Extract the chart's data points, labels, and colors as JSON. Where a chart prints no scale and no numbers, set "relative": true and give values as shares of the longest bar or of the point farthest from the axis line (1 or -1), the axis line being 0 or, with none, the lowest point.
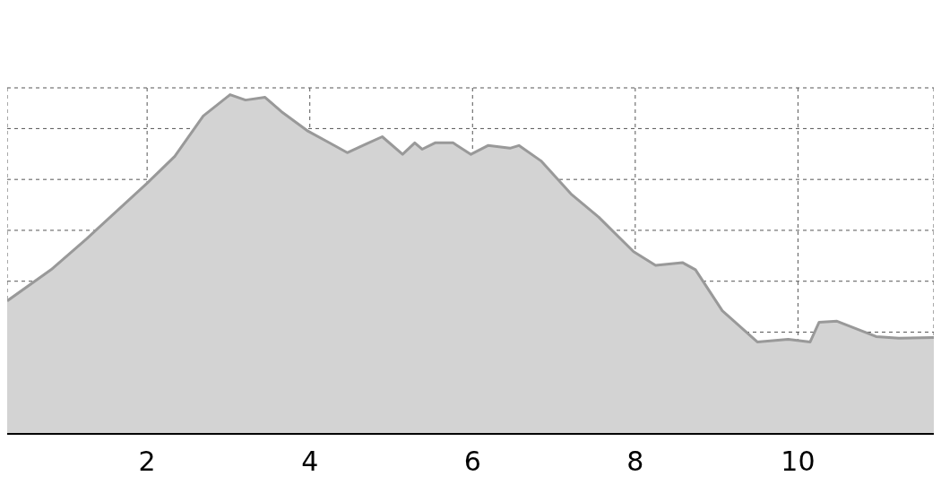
{
  "chart_data": {
    "type": "area",
    "relative": true,
    "x": [
      0.28,
      0.82,
      1.26,
      2.0,
      2.34,
      2.69,
      3.02,
      3.21,
      3.45,
      3.65,
      3.98,
      4.24,
      4.46,
      4.68,
      4.89,
      5.14,
      5.29,
      5.38,
      5.54,
      5.76,
      5.98,
      6.19,
      6.46,
      6.57,
      6.84,
      7.22,
      7.55,
      7.98,
      8.25,
      8.58,
      8.74,
      9.07,
      9.5,
      9.88,
      10.15,
      10.26,
      10.48,
      10.96,
      11.24,
      11.67
    ],
    "series": [
      {
        "color": "#999999",
        "values": [
          0.392,
          0.484,
          0.576,
          0.739,
          0.818,
          0.937,
          1,
          0.984,
          0.992,
          0.95,
          0.892,
          0.858,
          0.829,
          0.853,
          0.876,
          0.824,
          0.858,
          0.839,
          0.858,
          0.858,
          0.824,
          0.85,
          0.842,
          0.85,
          0.805,
          0.705,
          0.639,
          0.537,
          0.497,
          0.505,
          0.484,
          0.363,
          0.271,
          0.279,
          0.271,
          0.329,
          0.332,
          0.287,
          0.282,
          0.284
        ]
      }
    ],
    "xlim": [
      0.28,
      11.67
    ],
    "xticks": [
      2,
      4,
      6,
      8,
      10
    ],
    "grid": true
  }
}
